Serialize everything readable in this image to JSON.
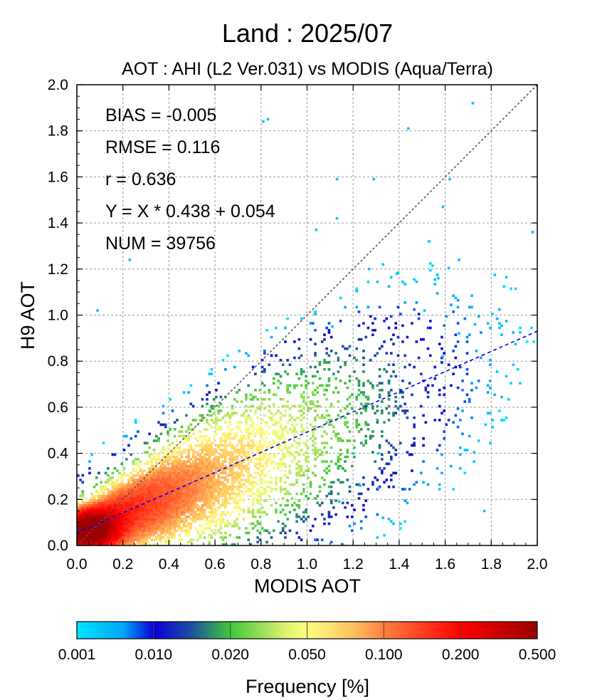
{
  "chart_data": {
    "type": "scatter",
    "title": "Land  :  2025/07",
    "subtitle": "AOT : AHI (L2 Ver.031) vs MODIS (Aqua/Terra)",
    "xlabel": "MODIS AOT",
    "ylabel": "H9 AOT",
    "xlim": [
      0.0,
      2.0
    ],
    "ylim": [
      0.0,
      2.0
    ],
    "xticks": [
      "0.0",
      "0.2",
      "0.4",
      "0.6",
      "0.8",
      "1.0",
      "1.2",
      "1.4",
      "1.6",
      "1.8",
      "2.0"
    ],
    "yticks": [
      "0.0",
      "0.2",
      "0.4",
      "0.6",
      "0.8",
      "1.0",
      "1.2",
      "1.4",
      "1.6",
      "1.8",
      "2.0"
    ],
    "grid": true,
    "stats": {
      "bias": "BIAS = -0.005",
      "rmse": "RMSE = 0.116",
      "r": "r = 0.636",
      "regression": "Y = X * 0.438 + 0.054",
      "num": "NUM = 39756"
    },
    "regression": {
      "slope": 0.438,
      "intercept": 0.054
    },
    "one_to_one_line": true,
    "colorbar": {
      "label": "Frequency [%]",
      "ticks": [
        "0.001",
        "0.010",
        "0.020",
        "0.050",
        "0.100",
        "0.200",
        "0.500"
      ],
      "colors": [
        "#00e5ff",
        "#0a00d8",
        "#3ec83a",
        "#ffff80",
        "#ff8040",
        "#ff0000",
        "#990000"
      ]
    },
    "outliers": [
      [
        1.72,
        1.92
      ],
      [
        1.44,
        1.81
      ],
      [
        0.83,
        1.85
      ],
      [
        0.81,
        1.84
      ],
      [
        1.62,
        1.59
      ],
      [
        1.59,
        1.47
      ],
      [
        1.13,
        1.42
      ],
      [
        1.04,
        1.37
      ],
      [
        1.98,
        1.36
      ],
      [
        1.53,
        1.32
      ],
      [
        1.66,
        1.24
      ],
      [
        1.33,
        1.22
      ],
      [
        1.39,
        1.18
      ],
      [
        1.57,
        1.16
      ],
      [
        1.51,
        1.02
      ],
      [
        1.73,
        0.96
      ],
      [
        1.11,
        0.95
      ],
      [
        1.66,
        0.92
      ],
      [
        1.59,
        0.82
      ],
      [
        1.77,
        0.15
      ],
      [
        1.14,
        0.19
      ],
      [
        1.33,
        0.12
      ],
      [
        1.31,
        0.25
      ],
      [
        1.23,
        0.26
      ],
      [
        1.13,
        1.59
      ],
      [
        1.29,
        1.59
      ],
      [
        0.09,
        1.02
      ],
      [
        0.23,
        1.24
      ],
      [
        1.2,
        0.4
      ],
      [
        1.31,
        0.4
      ],
      [
        1.27,
        1.2
      ]
    ]
  }
}
